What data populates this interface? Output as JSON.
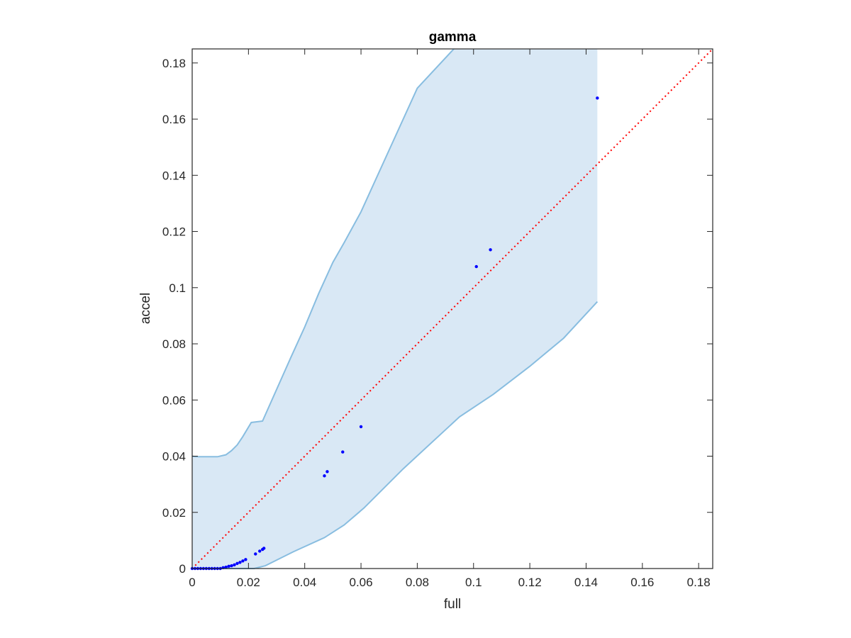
{
  "chart_data": {
    "type": "scatter",
    "title": "gamma",
    "xlabel": "full",
    "ylabel": "accel",
    "xlim": [
      0,
      0.185
    ],
    "ylim": [
      0,
      0.185
    ],
    "grid": false,
    "xticks": [
      0,
      0.02,
      0.04,
      0.06,
      0.08,
      0.1,
      0.12,
      0.14,
      0.16,
      0.18
    ],
    "yticks": [
      0,
      0.02,
      0.04,
      0.06,
      0.08,
      0.1,
      0.12,
      0.14,
      0.16,
      0.18
    ],
    "xtick_labels": [
      "0",
      "0.02",
      "0.04",
      "0.06",
      "0.08",
      "0.1",
      "0.12",
      "0.14",
      "0.16",
      "0.18"
    ],
    "ytick_labels": [
      "0",
      "0.02",
      "0.04",
      "0.06",
      "0.08",
      "0.1",
      "0.12",
      "0.14",
      "0.16",
      "0.18"
    ],
    "points": {
      "color": "#0000ff",
      "x": [
        0,
        0.001,
        0.002,
        0.003,
        0.004,
        0.005,
        0.006,
        0.007,
        0.008,
        0.009,
        0.01,
        0.011,
        0.012,
        0.013,
        0.014,
        0.015,
        0.016,
        0.017,
        0.018,
        0.019,
        0.0225,
        0.024,
        0.025,
        0.0255,
        0.047,
        0.048,
        0.0535,
        0.06,
        0.101,
        0.106,
        0.144
      ],
      "y": [
        0,
        0,
        0,
        0,
        0,
        0,
        0,
        0,
        0,
        0,
        0,
        0.0003,
        0.0005,
        0.0008,
        0.001,
        0.0013,
        0.0018,
        0.0022,
        0.0027,
        0.0032,
        0.0052,
        0.0062,
        0.0068,
        0.0072,
        0.033,
        0.0345,
        0.0415,
        0.0505,
        0.1075,
        0.1135,
        0.1675
      ]
    },
    "reference_line": {
      "color": "#ff0000",
      "style": "dotted",
      "x": [
        0,
        0.185
      ],
      "y": [
        0,
        0.185
      ]
    },
    "band": {
      "fill_color": "#d9e8f5",
      "edge_color": "#88bde0",
      "upper": {
        "x": [
          0,
          0.001,
          0.003,
          0.006,
          0.009,
          0.012,
          0.014,
          0.016,
          0.018,
          0.021,
          0.025,
          0.035,
          0.04,
          0.045,
          0.05,
          0.054,
          0.06,
          0.07,
          0.08,
          0.093
        ],
        "y": [
          0.04,
          0.0398,
          0.0398,
          0.0398,
          0.0398,
          0.0405,
          0.042,
          0.044,
          0.047,
          0.052,
          0.0525,
          0.075,
          0.086,
          0.098,
          0.109,
          0.116,
          0.127,
          0.149,
          0.171,
          0.185
        ]
      },
      "lower": {
        "x": [
          0,
          0.012,
          0.015,
          0.018,
          0.022,
          0.026,
          0.03,
          0.036,
          0.047,
          0.054,
          0.061,
          0.075,
          0.095,
          0.107,
          0.12,
          0.132,
          0.144
        ],
        "y": [
          0,
          0,
          0,
          0,
          0,
          0.001,
          0.003,
          0.006,
          0.011,
          0.0155,
          0.0215,
          0.0355,
          0.054,
          0.062,
          0.072,
          0.082,
          0.095
        ]
      },
      "right_edge_x": 0.144
    }
  }
}
